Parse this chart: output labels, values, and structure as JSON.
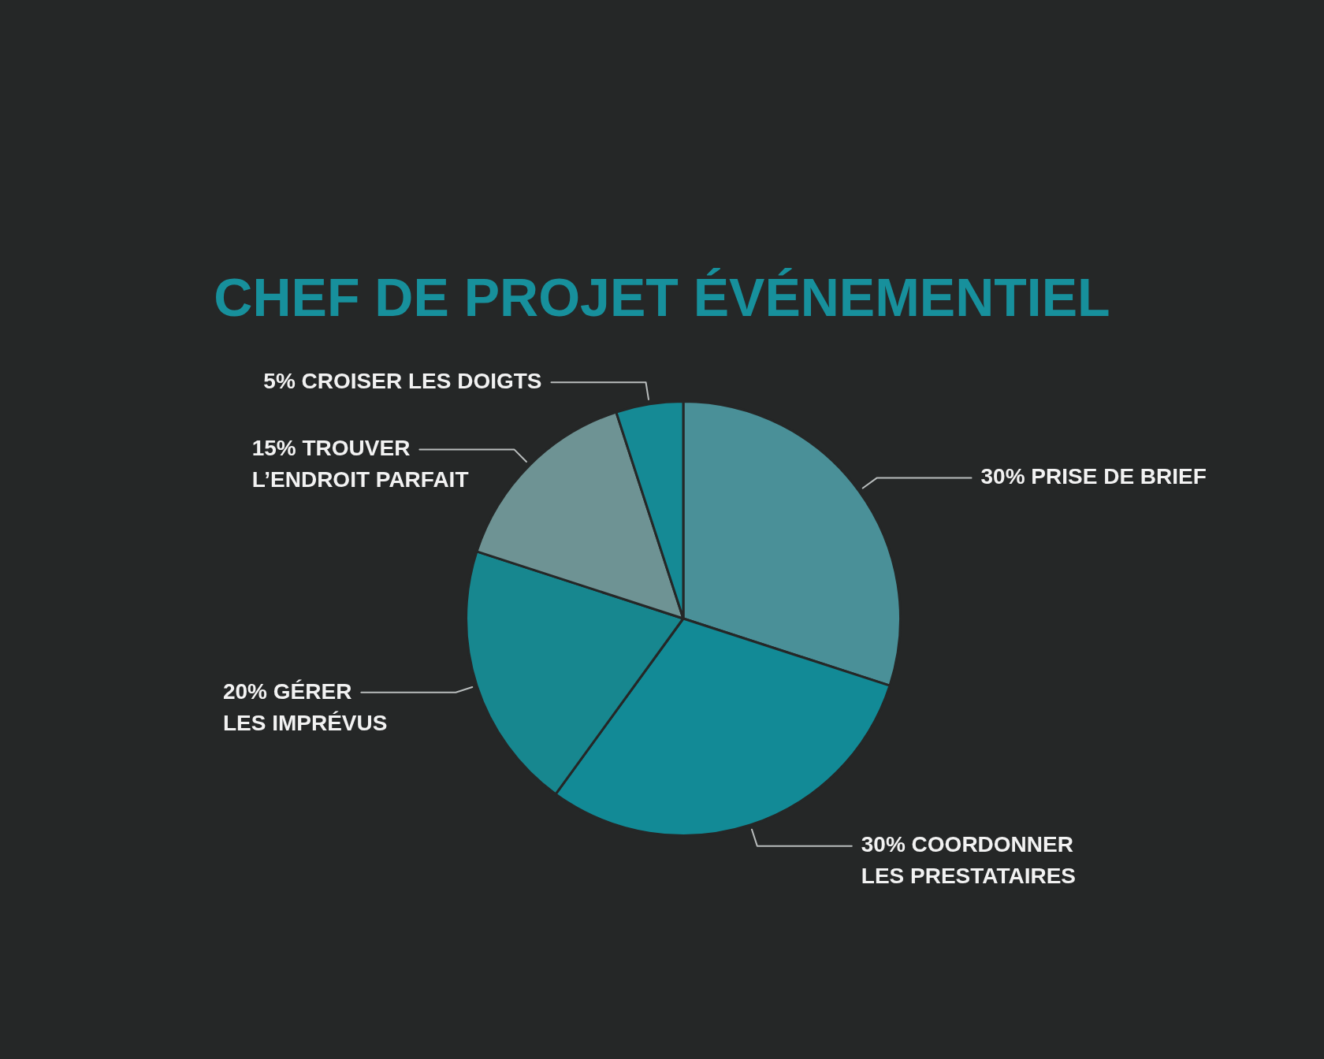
{
  "chart_data": {
    "type": "pie",
    "title": "CHEF DE PROJET ÉVÉNEMENTIEL",
    "categories": [
      "PRISE DE BRIEF",
      "COORDONNER\nLES PRESTATAIRES",
      "GÉRER\nLES IMPRÉVUS",
      "TROUVER\nL’ENDROIT PARFAIT",
      "CROISER LES DOIGTS"
    ],
    "values": [
      30,
      30,
      20,
      15,
      5
    ],
    "value_labels": [
      "30%",
      "30%",
      "20%",
      "15%",
      "5%"
    ],
    "colors": [
      "#4a9098",
      "#128a96",
      "#17878f",
      "#6e9394",
      "#158a95"
    ]
  }
}
